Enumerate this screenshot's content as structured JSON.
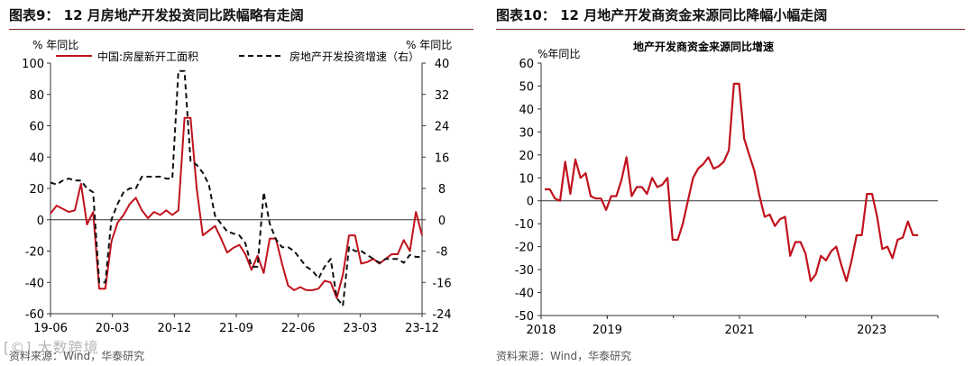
{
  "colors": {
    "red": "#c0121d",
    "black": "#111111",
    "rule": "#8a1d1d",
    "axis": "#333333"
  },
  "left": {
    "title": "图表9：  12 月房地产开发投资同比跌幅略有走阔",
    "source": "资料来源：Wind，华泰研究",
    "watermark": "[©] 大数跨境",
    "chart_data": {
      "type": "line",
      "title": "",
      "ylabel_left": "% 年同比",
      "ylabel_right": "% 年同比",
      "ylim_left": [
        -60,
        100
      ],
      "ylim_right": [
        -24,
        40
      ],
      "yticks_left": [
        "100",
        "80",
        "60",
        "40",
        "20",
        "0",
        "-20",
        "-40",
        "-60"
      ],
      "yticks_right": [
        "40",
        "32",
        "24",
        "16",
        "8",
        "0",
        "-8",
        "-16",
        "-24"
      ],
      "xticks": [
        "19-06",
        "20-03",
        "20-12",
        "21-09",
        "22-06",
        "23-03",
        "23-12"
      ],
      "legend": [
        "中国:房屋新开工面积",
        "房地产开发投资增速（右）"
      ],
      "series": [
        {
          "name": "中国:房屋新开工面积",
          "axis": "left",
          "style": "solid",
          "values": [
            4,
            9,
            7,
            5,
            6,
            23,
            -3,
            5,
            -44,
            -44,
            -14,
            -2,
            3,
            10,
            14,
            6,
            1,
            5,
            3,
            6,
            3,
            6,
            65,
            65,
            20,
            -10,
            -7,
            -4,
            -12,
            -21,
            -18,
            -16,
            -22,
            -32,
            -23,
            -34,
            -12,
            -12,
            -28,
            -42,
            -45,
            -43,
            -45,
            -45,
            -44,
            -39,
            -40,
            -50,
            -35,
            -10,
            -10,
            -28,
            -27,
            -25,
            -28,
            -25,
            -22,
            -22,
            -13,
            -20,
            5,
            -10
          ]
        },
        {
          "name": "房地产开发投资增速（右）",
          "axis": "right",
          "style": "dashed",
          "values": [
            9.5,
            9,
            10,
            10.5,
            10,
            10,
            8,
            7,
            -16,
            -16,
            0,
            4,
            7,
            8,
            8,
            11,
            11,
            11,
            11,
            10.5,
            10.5,
            38,
            38,
            15,
            14,
            12,
            9,
            1,
            -1,
            -3,
            -3.5,
            -4,
            -6,
            -12,
            -12,
            7,
            -1,
            -5,
            -7,
            -7,
            -8,
            -10,
            -12,
            -13,
            -15,
            -12,
            -10,
            -20,
            -22,
            -7,
            -8,
            -8,
            -9,
            -10,
            -11,
            -10,
            -10,
            -10,
            -11,
            -9,
            -9.5,
            -9.5
          ]
        }
      ]
    }
  },
  "right": {
    "title": "图表10：  12 月地产开发商资金来源同比降幅小幅走阔",
    "source": "资料来源：Wind，华泰研究",
    "chart_data": {
      "type": "line",
      "title": "地产开发商资金来源同比增速",
      "ylabel": "%年同比",
      "ylim": [
        -50,
        60
      ],
      "yticks": [
        "60",
        "50",
        "40",
        "30",
        "20",
        "10",
        "0",
        "-10",
        "-20",
        "-30",
        "-40",
        "-50"
      ],
      "xticks": [
        "2018",
        "2019",
        "2021",
        "2023"
      ],
      "series": [
        {
          "name": "地产开发商资金来源同比增速",
          "style": "solid",
          "values": [
            5,
            5,
            1,
            0,
            17,
            3,
            18,
            10,
            12,
            2,
            1,
            1,
            -4,
            2,
            2,
            9,
            19,
            2,
            6,
            6,
            3,
            10,
            6,
            7,
            10,
            -17,
            -17,
            -10,
            0,
            10,
            14,
            16,
            19,
            14,
            15,
            17,
            22,
            51,
            51,
            27,
            20,
            13,
            2,
            -7,
            -6,
            -11,
            -8,
            -7,
            -24,
            -18,
            -18,
            -23,
            -35,
            -32,
            -24,
            -26,
            -22,
            -20,
            -28,
            -35,
            -26,
            -15,
            -15,
            3,
            3,
            -7,
            -21,
            -20,
            -25,
            -17,
            -16,
            -9,
            -15,
            -15
          ]
        }
      ]
    }
  }
}
